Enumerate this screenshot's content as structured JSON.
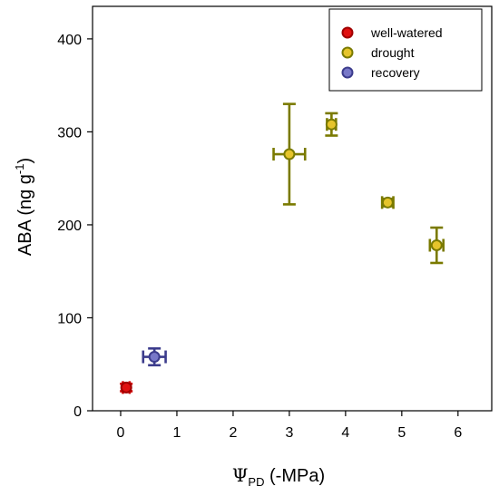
{
  "chart_data": {
    "type": "scatter",
    "title": "",
    "xlabel": {
      "symbol": "Ψ",
      "subscript": "PD",
      "suffix": " (-MPa)"
    },
    "ylabel": {
      "main": "ABA (ng g",
      "superscript": "-1",
      "close": ")"
    },
    "xlim": [
      -0.5,
      6.6
    ],
    "ylim": [
      0,
      435
    ],
    "xticks": [
      0,
      1,
      2,
      3,
      4,
      5,
      6
    ],
    "yticks": [
      0,
      100,
      200,
      300,
      400
    ],
    "grid": false,
    "legend_position": "top-right",
    "series": [
      {
        "name": "well-watered",
        "color": "#e01010",
        "edge": "#a00000",
        "errcolor": "#cc0000",
        "points": [
          {
            "x": 0.1,
            "y": 25,
            "xerr": 0.06,
            "yerr": 4
          }
        ]
      },
      {
        "name": "drought",
        "color": "#e6c42a",
        "edge": "#7a7a00",
        "errcolor": "#7a7a00",
        "points": [
          {
            "x": 3.0,
            "y": 276,
            "xerr": 0.28,
            "yerr": 54
          },
          {
            "x": 3.75,
            "y": 308,
            "xerr": 0.08,
            "yerr": 12
          },
          {
            "x": 4.75,
            "y": 224,
            "xerr": 0.1,
            "yerr": 4
          },
          {
            "x": 5.62,
            "y": 178,
            "xerr": 0.12,
            "yerr": 19
          }
        ]
      },
      {
        "name": "recovery",
        "color": "#7878c8",
        "edge": "#3c3c8c",
        "errcolor": "#3c3c8c",
        "points": [
          {
            "x": 0.6,
            "y": 58,
            "xerr": 0.2,
            "yerr": 9
          }
        ]
      }
    ]
  }
}
